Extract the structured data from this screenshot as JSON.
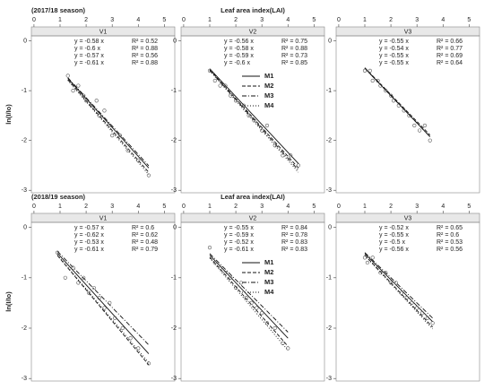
{
  "chart_data": [
    {
      "type": "scatter",
      "season": "(2017/18 season)",
      "ylabel": "ln(I/Io)",
      "strip": "V1",
      "xlim": [
        -0.1,
        5.4
      ],
      "xticks": [
        0,
        1,
        2,
        3,
        4,
        5
      ],
      "ylim": [
        -3.05,
        0.1
      ],
      "yticks": [
        0,
        -1,
        -2,
        -3
      ],
      "x": [
        1.3,
        1.5,
        1.7,
        1.9,
        2.0,
        2.2,
        2.4,
        2.5,
        2.7,
        2.9,
        3.0,
        3.3,
        3.6,
        4.0,
        4.4
      ],
      "y": [
        -0.7,
        -1.0,
        -0.9,
        -1.1,
        -1.2,
        -1.3,
        -1.2,
        -1.5,
        -1.4,
        -1.7,
        -1.9,
        -1.9,
        -2.2,
        -2.4,
        -2.7
      ],
      "series": [
        {
          "slope": -0.58,
          "equation": "y = -0.58 x",
          "r2": 0.52,
          "r2_label": "R² = 0.52",
          "dash": "none"
        },
        {
          "slope": -0.6,
          "equation": "y = -0.6 x",
          "r2": 0.88,
          "r2_label": "R² = 0.88",
          "dash": "4 2"
        },
        {
          "slope": -0.57,
          "equation": "y = -0.57 x",
          "r2": 0.56,
          "r2_label": "R² = 0.56",
          "dash": "5 2 1 2"
        },
        {
          "slope": -0.61,
          "equation": "y = -0.61 x",
          "r2": 0.88,
          "r2_label": "R² = 0.88",
          "dash": "1 2"
        }
      ]
    },
    {
      "type": "scatter",
      "xlabel": "Leaf area index(LAI)",
      "strip": "V2",
      "legend": true,
      "xlim": [
        -0.1,
        5.4
      ],
      "xticks": [
        0,
        1,
        2,
        3,
        4,
        5
      ],
      "ylim": [
        -3.05,
        0.1
      ],
      "yticks": [
        0,
        -1,
        -2,
        -3
      ],
      "x": [
        1.0,
        1.2,
        1.4,
        1.6,
        1.8,
        2.0,
        2.3,
        2.5,
        2.7,
        3.0,
        3.2,
        3.5,
        3.8,
        4.1,
        4.4
      ],
      "y": [
        -0.6,
        -0.8,
        -0.9,
        -0.9,
        -1.1,
        -1.2,
        -1.3,
        -1.5,
        -1.6,
        -1.8,
        -1.7,
        -2.1,
        -2.3,
        -2.3,
        -2.5
      ],
      "series": [
        {
          "name": "M1",
          "slope": -0.56,
          "equation": "y = -0.56 x",
          "r2": 0.75,
          "r2_label": "R² = 0.75",
          "dash": "none"
        },
        {
          "name": "M2",
          "slope": -0.58,
          "equation": "y = -0.58 x",
          "r2": 0.88,
          "r2_label": "R² = 0.88",
          "dash": "4 2"
        },
        {
          "name": "M3",
          "slope": -0.59,
          "equation": "y = -0.59 x",
          "r2": 0.73,
          "r2_label": "R² = 0.73",
          "dash": "5 2 1 2"
        },
        {
          "name": "M4",
          "slope": -0.6,
          "equation": "y = -0.6 x",
          "r2": 0.85,
          "r2_label": "R² = 0.85",
          "dash": "1 2"
        }
      ]
    },
    {
      "type": "scatter",
      "strip": "V3",
      "xlim": [
        -0.1,
        5.4
      ],
      "xticks": [
        0,
        1,
        2,
        3,
        4,
        5
      ],
      "ylim": [
        -3.05,
        0.1
      ],
      "yticks": [
        0,
        -1,
        -2,
        -3
      ],
      "x": [
        1.0,
        1.2,
        1.3,
        1.5,
        1.6,
        1.8,
        2.0,
        2.1,
        2.3,
        2.5,
        2.7,
        2.9,
        3.1,
        3.3,
        3.5
      ],
      "y": [
        -0.6,
        -0.6,
        -0.8,
        -0.8,
        -0.9,
        -1.0,
        -1.1,
        -1.2,
        -1.3,
        -1.4,
        -1.5,
        -1.7,
        -1.8,
        -1.7,
        -2.0
      ],
      "series": [
        {
          "slope": -0.55,
          "equation": "y = -0.55 x",
          "r2": 0.66,
          "r2_label": "R² = 0.66",
          "dash": "none"
        },
        {
          "slope": -0.54,
          "equation": "y = -0.54 x",
          "r2": 0.77,
          "r2_label": "R² = 0.77",
          "dash": "4 2"
        },
        {
          "slope": -0.55,
          "equation": "y = -0.55 x",
          "r2": 0.69,
          "r2_label": "R² = 0.69",
          "dash": "5 2 1 2"
        },
        {
          "slope": -0.55,
          "equation": "y = -0.55 x",
          "r2": 0.64,
          "r2_label": "R² = 0.64",
          "dash": "1 2"
        }
      ]
    },
    {
      "type": "scatter",
      "season": "(2018/19 season)",
      "ylabel": "ln(I/Io)",
      "strip": "V1",
      "xlim": [
        -0.1,
        5.4
      ],
      "xticks": [
        0,
        1,
        2,
        3,
        4,
        5
      ],
      "ylim": [
        -3.05,
        0.1
      ],
      "yticks": [
        0,
        -1,
        -2,
        -3
      ],
      "x": [
        0.9,
        1.2,
        1.5,
        1.7,
        1.9,
        2.1,
        2.3,
        2.5,
        2.7,
        2.9,
        3.1,
        3.4,
        3.7,
        4.0,
        4.4
      ],
      "y": [
        -0.5,
        -1.0,
        -0.8,
        -1.1,
        -1.0,
        -1.3,
        -1.2,
        -1.4,
        -1.6,
        -1.5,
        -1.8,
        -2.0,
        -2.2,
        -2.4,
        -2.7
      ],
      "series": [
        {
          "slope": -0.57,
          "equation": "y = -0.57 x",
          "r2": 0.6,
          "r2_label": "R² = 0.6",
          "dash": "none"
        },
        {
          "slope": -0.62,
          "equation": "y = -0.62 x",
          "r2": 0.62,
          "r2_label": "R² = 0.62",
          "dash": "4 2"
        },
        {
          "slope": -0.53,
          "equation": "y = -0.53 x",
          "r2": 0.48,
          "r2_label": "R² = 0.48",
          "dash": "5 2 1 2"
        },
        {
          "slope": -0.61,
          "equation": "y = -0.61 x",
          "r2": 0.79,
          "r2_label": "R² = 0.79",
          "dash": "1 2"
        }
      ]
    },
    {
      "type": "scatter",
      "xlabel": "Leaf area index(LAI)",
      "strip": "V2",
      "legend": true,
      "xlim": [
        -0.1,
        5.4
      ],
      "xticks": [
        0,
        1,
        2,
        3,
        4,
        5
      ],
      "ylim": [
        -3.05,
        0.1
      ],
      "yticks": [
        0,
        -1,
        -2,
        -3
      ],
      "x": [
        1.0,
        1.2,
        1.4,
        1.6,
        1.8,
        2.0,
        2.2,
        2.4,
        2.6,
        2.8,
        3.0,
        3.2,
        3.5,
        3.8,
        4.0
      ],
      "y": [
        -0.4,
        -0.7,
        -0.8,
        -0.9,
        -1.0,
        -1.2,
        -1.1,
        -1.4,
        -1.5,
        -1.6,
        -1.7,
        -1.9,
        -2.0,
        -2.3,
        -2.4
      ],
      "series": [
        {
          "name": "M1",
          "slope": -0.55,
          "equation": "y = -0.55 x",
          "r2": 0.84,
          "r2_label": "R² = 0.84",
          "dash": "none"
        },
        {
          "name": "M2",
          "slope": -0.59,
          "equation": "y = -0.59 x",
          "r2": 0.78,
          "r2_label": "R² = 0.78",
          "dash": "4 2"
        },
        {
          "name": "M3",
          "slope": -0.52,
          "equation": "y = -0.52 x",
          "r2": 0.83,
          "r2_label": "R² = 0.83",
          "dash": "5 2 1 2"
        },
        {
          "name": "M4",
          "slope": -0.61,
          "equation": "y = -0.61 x",
          "r2": 0.83,
          "r2_label": "R² = 0.83",
          "dash": "1 2"
        }
      ]
    },
    {
      "type": "scatter",
      "strip": "V3",
      "xlim": [
        -0.1,
        5.4
      ],
      "xticks": [
        0,
        1,
        2,
        3,
        4,
        5
      ],
      "ylim": [
        -3.05,
        0.1
      ],
      "yticks": [
        0,
        -1,
        -2,
        -3
      ],
      "x": [
        1.0,
        1.1,
        1.3,
        1.5,
        1.6,
        1.8,
        2.0,
        2.2,
        2.4,
        2.6,
        2.8,
        3.0,
        3.2,
        3.4,
        3.6
      ],
      "y": [
        -0.6,
        -0.7,
        -0.6,
        -0.8,
        -0.9,
        -0.9,
        -1.1,
        -1.1,
        -1.3,
        -1.4,
        -1.5,
        -1.6,
        -1.7,
        -1.8,
        -1.9
      ],
      "series": [
        {
          "slope": -0.52,
          "equation": "y = -0.52 x",
          "r2": 0.65,
          "r2_label": "R² = 0.65",
          "dash": "none"
        },
        {
          "slope": -0.55,
          "equation": "y = -0.55 x",
          "r2": 0.6,
          "r2_label": "R² = 0.6",
          "dash": "4 2"
        },
        {
          "slope": -0.5,
          "equation": "y = -0.5 x",
          "r2": 0.53,
          "r2_label": "R² = 0.53",
          "dash": "5 2 1 2"
        },
        {
          "slope": -0.56,
          "equation": "y = -0.56 x",
          "r2": 0.56,
          "r2_label": "R² = 0.56",
          "dash": "1 2"
        }
      ]
    }
  ]
}
